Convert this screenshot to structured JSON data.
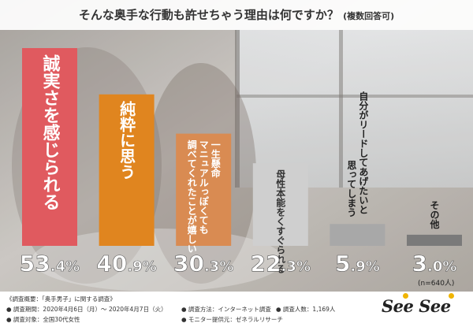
{
  "header": {
    "title": "そんな奥手な行動も許せちゃう理由は何ですか？",
    "subtitle": "(複数回答可)"
  },
  "chart_data": {
    "type": "bar",
    "categories": [
      "誠実さを感じられる",
      "純粋に思う",
      "マニュアルっぽくても一生懸命調べてくれたことが嬉しい",
      "母性本能をくすぐられる",
      "自分がリードしてあげたいと思ってしまう",
      "その他"
    ],
    "values": [
      53.4,
      40.9,
      30.3,
      22.3,
      5.9,
      3.0
    ],
    "value_labels": [
      {
        "int": "53",
        "dec": ".4",
        "pct": "%"
      },
      {
        "int": "40",
        "dec": ".9",
        "pct": "%"
      },
      {
        "int": "30",
        "dec": ".3",
        "pct": "%"
      },
      {
        "int": "22",
        "dec": ".3",
        "pct": "%"
      },
      {
        "int": "5",
        "dec": ".9",
        "pct": "%"
      },
      {
        "int": "3",
        "dec": ".0",
        "pct": "%"
      }
    ],
    "bar_label_lines": [
      [
        "誠実さを感じられる"
      ],
      [
        "純粋に思う"
      ],
      [
        "一生懸命",
        "マニュアルっぽくても",
        "調べてくれたことが嬉しい"
      ],
      [
        "母性本能をくすぐられる"
      ],
      [
        "自分がリードしてあげたいと",
        "思ってしまう"
      ],
      [
        "その他"
      ]
    ],
    "bar_colors": [
      "#e05a5f",
      "#e0851f",
      "#d98b52",
      "#cfcfcf",
      "#a8a8a8",
      "#7a7a7a"
    ],
    "bar_label_colors": [
      "#ffffff",
      "#ffffff",
      "#ffffff",
      "#333333",
      "#222222",
      "#222222"
    ],
    "value_colors": [
      "#ffffff",
      "#ffffff",
      "#ffffff",
      "#ffffff",
      "#ffffff",
      "#ffffff"
    ],
    "ylim": [
      0,
      60
    ],
    "grid": false,
    "sample_size": "(n=640人)"
  },
  "footer": {
    "heading": "《調査概要：「奥手男子」に関する調査》",
    "period": "● 調査期間：2020年4月6日（月）～ 2020年4月7日（火）",
    "method": "● 調査方法：インターネット調査",
    "count": "● 調査人数：1,169人",
    "target": "● 調査対象：全国30代女性",
    "provider": "● モニター提供元：ゼネラルリサーチ"
  },
  "logo": {
    "text": "See See"
  }
}
